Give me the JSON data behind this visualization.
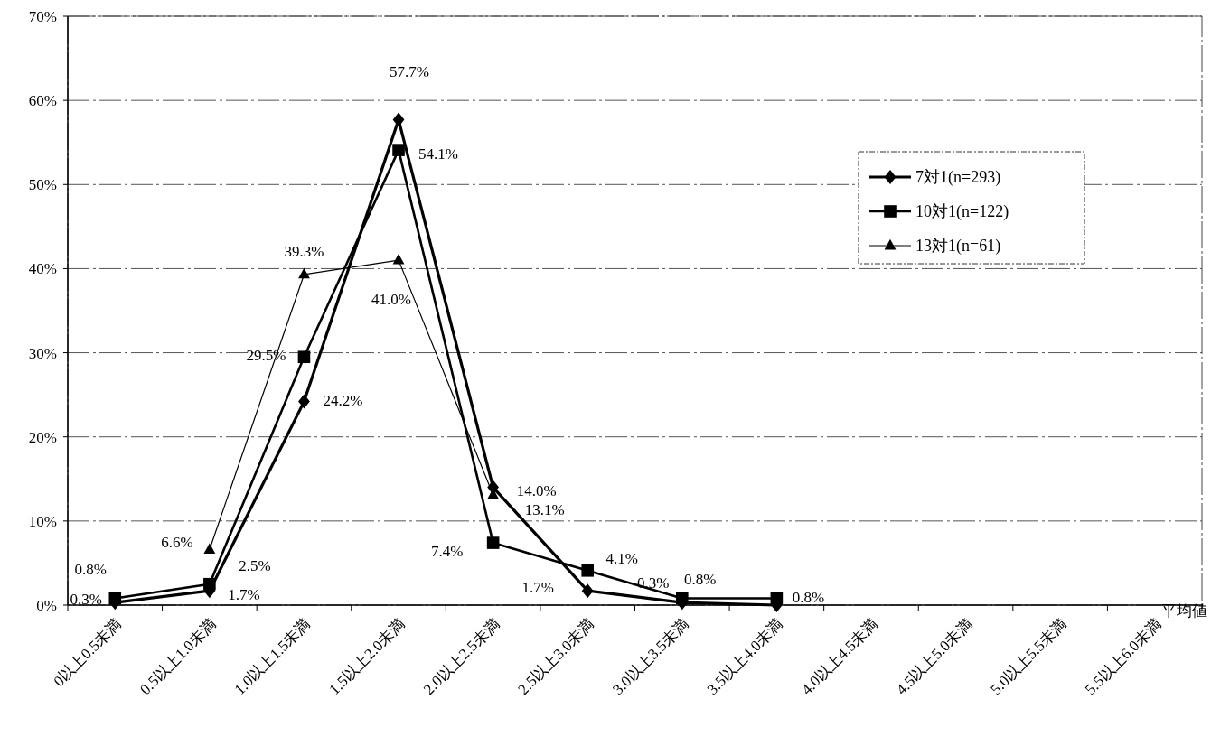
{
  "chart_data": {
    "type": "line",
    "xlabel": "平均値",
    "categories": [
      "0以上0.5未満",
      "0.5以上1.0未満",
      "1.0以上1.5未満",
      "1.5以上2.0未満",
      "2.0以上2.5未満",
      "2.5以上3.0未満",
      "3.0以上3.5未満",
      "3.5以上4.0未満",
      "4.0以上4.5未満",
      "4.5以上5.0未満",
      "5.0以上5.5未満",
      "5.5以上6.0未満"
    ],
    "series": [
      {
        "name": "7対1(n=293)",
        "color": "#000000",
        "marker": "diamond",
        "values": [
          0.3,
          1.7,
          24.2,
          57.7,
          14.0,
          1.7,
          0.3,
          0,
          null,
          null,
          null,
          null
        ],
        "value_labels": [
          "0.3%",
          "1.7%",
          "24.2%",
          "57.7%",
          "14.0%",
          "1.7%",
          "0.3%",
          null,
          null,
          null,
          null,
          null
        ]
      },
      {
        "name": "10対1(n=122)",
        "color": "#000000",
        "marker": "square",
        "values": [
          0.8,
          2.5,
          29.5,
          54.1,
          7.4,
          4.1,
          0.8,
          0.8,
          null,
          null,
          null,
          null
        ],
        "value_labels": [
          "0.8%",
          "2.5%",
          "29.5%",
          "54.1%",
          "7.4%",
          "4.1%",
          "0.8%",
          "0.8%",
          null,
          null,
          null,
          null
        ]
      },
      {
        "name": "13対1(n=61)",
        "color": "#000000",
        "marker": "triangle",
        "values": [
          null,
          6.6,
          39.3,
          41.0,
          13.1,
          null,
          null,
          null,
          null,
          null,
          null,
          null
        ],
        "value_labels": [
          null,
          "6.6%",
          "39.3%",
          "41.0%",
          "13.1%",
          null,
          null,
          null,
          null,
          null,
          null,
          null
        ]
      }
    ],
    "ylim": [
      0,
      70
    ],
    "yticks": [
      {
        "value": 0,
        "label": "0%"
      },
      {
        "value": 10,
        "label": "10%"
      },
      {
        "value": 20,
        "label": "20%"
      },
      {
        "value": 30,
        "label": "30%"
      },
      {
        "value": 40,
        "label": "40%"
      },
      {
        "value": 50,
        "label": "50%"
      },
      {
        "value": 60,
        "label": "60%"
      },
      {
        "value": 70,
        "label": "70%"
      }
    ],
    "grid": "y",
    "legend": "right",
    "line_style": "solid"
  }
}
